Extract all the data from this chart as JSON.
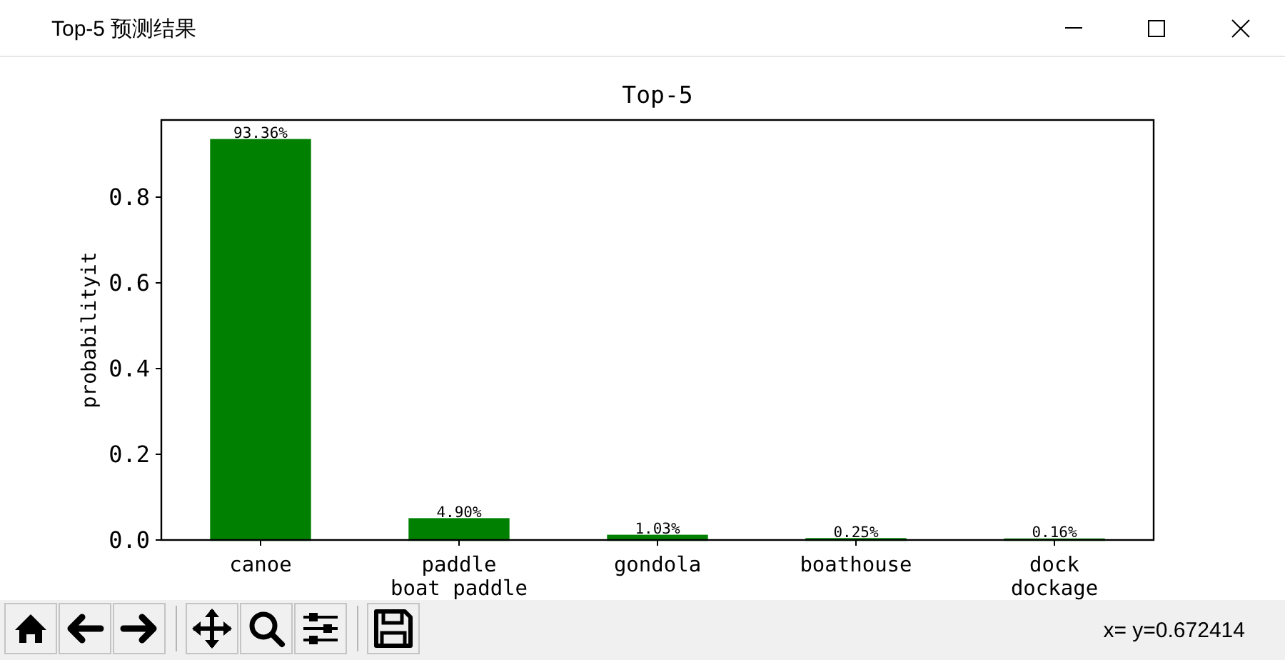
{
  "chart_data": {
    "type": "bar",
    "title": "Top-5",
    "ylabel": "probabilityit",
    "categories": [
      "canoe",
      "paddle\nboat paddle",
      "gondola",
      "boathouse",
      "dock\ndockage"
    ],
    "values": [
      0.9336,
      0.049,
      0.0103,
      0.0025,
      0.0016
    ],
    "value_labels": [
      "93.36%",
      "4.90%",
      "1.03%",
      "0.25%",
      "0.16%"
    ],
    "color": "#008000",
    "ylim": [
      0,
      0.98
    ],
    "yticks": [
      {
        "value": 0,
        "label": "0.0"
      },
      0.2,
      0.4,
      0.6,
      0.8
    ],
    "annotations": [
      "Top-5 预测结果",
      "x= y=0.672414"
    ]
  }
}
